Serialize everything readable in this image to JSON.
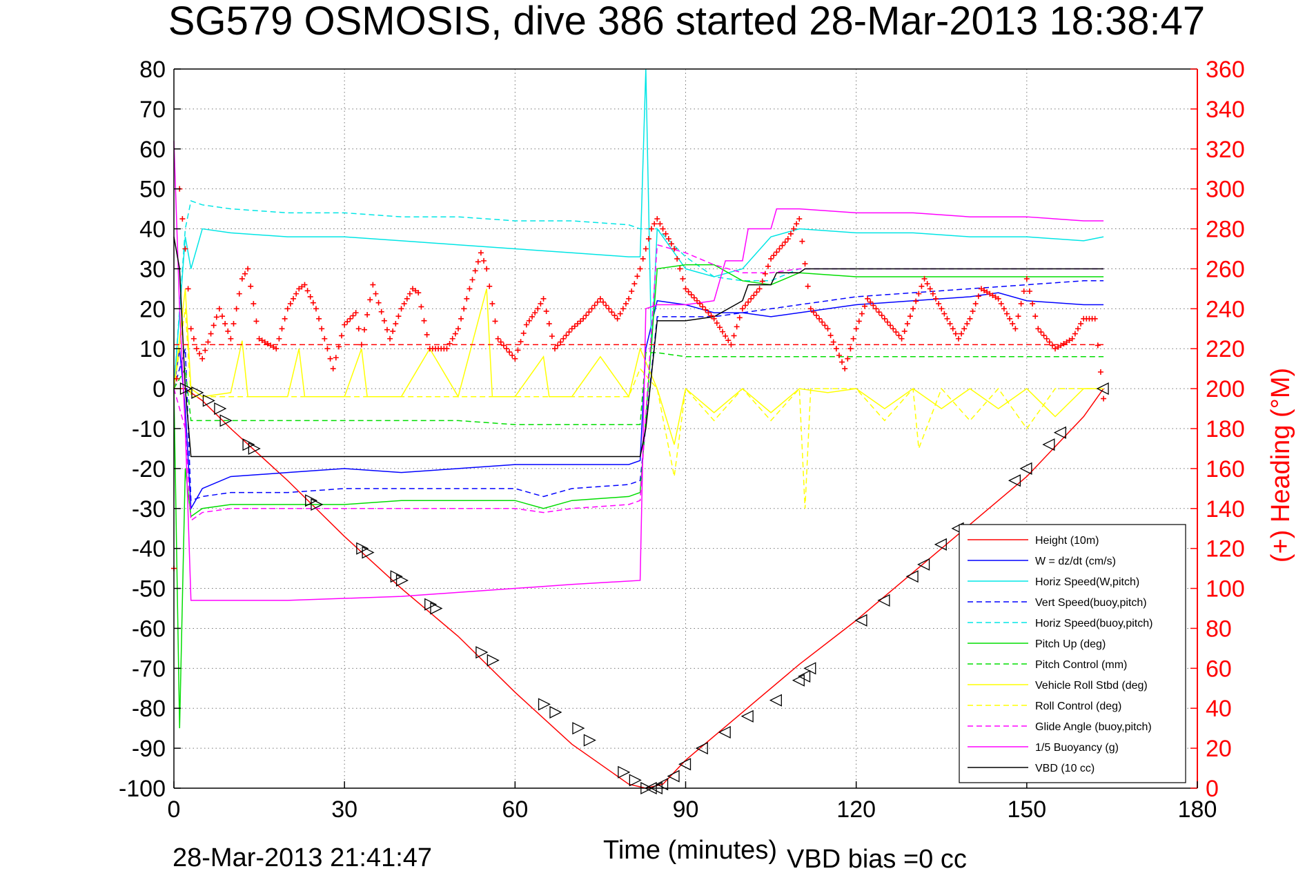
{
  "chart_data": {
    "type": "line",
    "title": "SG579 OSMOSIS, dive 386 started 28-Mar-2013 18:38:47",
    "xlabel": "Time (minutes)",
    "ylabel_right": "(+) Heading (°M)",
    "xlim": [
      0,
      180
    ],
    "ylim": [
      -100,
      80
    ],
    "ylim_right": [
      0,
      360
    ],
    "x_ticks": [
      "0",
      "30",
      "60",
      "90",
      "120",
      "150",
      "180"
    ],
    "y_ticks": [
      "80",
      "70",
      "60",
      "50",
      "40",
      "30",
      "20",
      "10",
      "0",
      "-10",
      "-20",
      "-30",
      "-40",
      "-50",
      "-60",
      "-70",
      "-80",
      "-90",
      "-100"
    ],
    "y_ticks_right": [
      "360",
      "340",
      "320",
      "300",
      "280",
      "260",
      "240",
      "220",
      "200",
      "180",
      "160",
      "140",
      "120",
      "100",
      "80",
      "60",
      "40",
      "20",
      "0"
    ],
    "grid": true,
    "legend_position": "bottom-right",
    "footer_left": "28-Mar-2013 21:41:47",
    "footer_right": "VBD bias =0 cc",
    "series": [
      {
        "name": "Height (10m)",
        "color": "#ff0000",
        "style": "solid",
        "x": [
          0,
          2,
          5,
          10,
          20,
          30,
          40,
          50,
          60,
          70,
          80,
          83,
          86,
          90,
          100,
          110,
          120,
          130,
          140,
          150,
          160,
          163.5
        ],
        "y": [
          0,
          0,
          -3,
          -10,
          -23,
          -37,
          -50,
          -62,
          -76,
          -89,
          -99,
          -100,
          -99,
          -93,
          -81,
          -69,
          -58,
          -46,
          -34,
          -22,
          -7,
          0
        ]
      },
      {
        "name": "W = dz/dt (cm/s)",
        "color": "#0000ff",
        "style": "solid",
        "x": [
          0,
          1,
          2,
          3,
          5,
          10,
          20,
          30,
          40,
          50,
          60,
          70,
          80,
          82,
          83,
          85,
          90,
          95,
          100,
          105,
          110,
          120,
          130,
          140,
          145,
          150,
          160,
          163.5
        ],
        "y": [
          0,
          10,
          -5,
          -30,
          -25,
          -22,
          -21,
          -20,
          -21,
          -20,
          -19,
          -19,
          -19,
          -18,
          10,
          22,
          21,
          19,
          19,
          18,
          19,
          21,
          22,
          23,
          24,
          22,
          21,
          21
        ]
      },
      {
        "name": "Horiz Speed(W,pitch)",
        "color": "#00e5e5",
        "style": "solid",
        "x": [
          0,
          2,
          3,
          5,
          10,
          20,
          30,
          40,
          50,
          60,
          70,
          80,
          82,
          83,
          84,
          85,
          90,
          95,
          100,
          105,
          110,
          120,
          130,
          140,
          150,
          160,
          163.5
        ],
        "y": [
          0,
          38,
          30,
          40,
          39,
          38,
          38,
          37,
          36,
          35,
          34,
          33,
          33,
          80,
          10,
          40,
          30,
          28,
          30,
          38,
          40,
          39,
          39,
          38,
          38,
          37,
          38
        ]
      },
      {
        "name": "Vert Speed(buoy,pitch)",
        "color": "#0000ff",
        "style": "dashed",
        "x": [
          0,
          2,
          3,
          5,
          10,
          20,
          30,
          40,
          50,
          60,
          65,
          70,
          80,
          82,
          85,
          90,
          95,
          100,
          105,
          110,
          120,
          130,
          140,
          150,
          160,
          163.5
        ],
        "y": [
          0,
          10,
          -28,
          -27,
          -26,
          -26,
          -25,
          -25,
          -25,
          -25,
          -27,
          -25,
          -24,
          -23,
          18,
          18,
          18,
          19,
          20,
          21,
          23,
          24,
          25,
          26,
          27,
          27
        ]
      },
      {
        "name": "Horiz Speed(buoy,pitch)",
        "color": "#00e5e5",
        "style": "dashed",
        "x": [
          0,
          2,
          3,
          5,
          10,
          20,
          30,
          40,
          50,
          60,
          70,
          80,
          82,
          85,
          90,
          95,
          100,
          105,
          110,
          120,
          130,
          140,
          150,
          160,
          163.5
        ],
        "y": [
          0,
          40,
          47,
          46,
          45,
          44,
          44,
          43,
          43,
          42,
          42,
          41,
          40,
          40,
          33,
          28,
          27,
          27,
          30,
          30,
          30,
          30,
          30,
          30,
          30
        ]
      },
      {
        "name": "Pitch Up (deg)",
        "color": "#00dd00",
        "style": "solid",
        "x": [
          0,
          1,
          2,
          3,
          5,
          10,
          20,
          30,
          40,
          50,
          60,
          65,
          70,
          80,
          82,
          85,
          90,
          95,
          100,
          105,
          110,
          120,
          130,
          140,
          150,
          160,
          163.5
        ],
        "y": [
          0,
          -85,
          -20,
          -32,
          -30,
          -29,
          -29,
          -29,
          -28,
          -28,
          -28,
          -30,
          -28,
          -27,
          -26,
          30,
          31,
          31,
          27,
          26,
          29,
          28,
          28,
          28,
          28,
          28,
          28
        ]
      },
      {
        "name": "Pitch Control (mm)",
        "color": "#00dd00",
        "style": "dashed",
        "x": [
          0,
          2,
          3,
          5,
          10,
          20,
          30,
          40,
          50,
          60,
          70,
          80,
          82,
          83,
          85,
          90,
          100,
          110,
          120,
          130,
          140,
          150,
          160,
          163.5
        ],
        "y": [
          0,
          5,
          -8,
          -8,
          -8,
          -8,
          -8,
          -8,
          -8,
          -9,
          -9,
          -9,
          -9,
          9,
          9,
          8,
          8,
          8,
          8,
          8,
          8,
          8,
          8,
          8
        ]
      },
      {
        "name": "Vehicle Roll Stbd (deg)",
        "color": "#ffff00",
        "style": "solid",
        "x": [
          0,
          2,
          3,
          5,
          10,
          12,
          13,
          20,
          22,
          23,
          30,
          33,
          34,
          40,
          45,
          50,
          55,
          56,
          60,
          65,
          66,
          70,
          75,
          80,
          82,
          85,
          88,
          90,
          95,
          100,
          105,
          110,
          115,
          120,
          125,
          130,
          135,
          140,
          145,
          150,
          155,
          160,
          163.5
        ],
        "y": [
          0,
          25,
          0,
          -2,
          -1,
          12,
          -2,
          -2,
          10,
          -2,
          -2,
          10,
          -2,
          -2,
          10,
          -2,
          25,
          -2,
          -2,
          8,
          -2,
          -2,
          8,
          -2,
          10,
          0,
          -14,
          0,
          -6,
          0,
          -6,
          0,
          -1,
          0,
          -5,
          0,
          -5,
          0,
          -5,
          0,
          -7,
          0,
          0
        ]
      },
      {
        "name": "Roll Control (deg)",
        "color": "#ffff00",
        "style": "dashed",
        "x": [
          0,
          2,
          3,
          10,
          20,
          30,
          40,
          50,
          60,
          70,
          80,
          82,
          85,
          88,
          90,
          95,
          100,
          105,
          110,
          111,
          112,
          120,
          125,
          130,
          131,
          135,
          140,
          145,
          150,
          155,
          160,
          163.5
        ],
        "y": [
          0,
          20,
          -2,
          -2,
          -2,
          -2,
          -2,
          -2,
          -2,
          -2,
          -2,
          5,
          0,
          -22,
          0,
          -8,
          0,
          -8,
          0,
          -30,
          0,
          0,
          -8,
          0,
          -15,
          0,
          -8,
          0,
          -10,
          0,
          0,
          0
        ]
      },
      {
        "name": "Glide Angle (buoy,pitch)",
        "color": "#ff00ff",
        "style": "dashed",
        "x": [
          0,
          2,
          3,
          5,
          10,
          20,
          30,
          40,
          50,
          60,
          65,
          70,
          80,
          82,
          85,
          90,
          95,
          100,
          105,
          110,
          120,
          130,
          140,
          150,
          160,
          163.5
        ],
        "y": [
          0,
          -10,
          -33,
          -31,
          -30,
          -30,
          -30,
          -30,
          -30,
          -30,
          -31,
          -30,
          -29,
          -28,
          36,
          34,
          31,
          29,
          29,
          30,
          30,
          30,
          30,
          30,
          30,
          30
        ]
      },
      {
        "name": "1/5 Buoyancy (g)",
        "color": "#ff00ff",
        "style": "solid",
        "x": [
          0,
          1,
          2,
          3,
          20,
          40,
          60,
          70,
          82,
          83,
          85,
          90,
          95,
          97,
          100,
          101,
          105,
          106,
          110,
          120,
          130,
          140,
          150,
          160,
          163.5
        ],
        "y": [
          62,
          20,
          -10,
          -53,
          -53,
          -52,
          -50,
          -49,
          -48,
          20,
          21,
          21,
          22,
          32,
          32,
          40,
          40,
          45,
          45,
          44,
          44,
          43,
          43,
          42,
          42
        ]
      },
      {
        "name": "VBD (10 cc)",
        "color": "#000000",
        "style": "solid",
        "x": [
          0,
          1,
          2,
          3,
          82,
          83,
          85,
          90,
          95,
          100,
          101,
          105,
          106,
          110,
          111,
          163.5
        ],
        "y": [
          38,
          30,
          0,
          -17,
          -17,
          -10,
          17,
          17,
          18,
          22,
          26,
          26,
          29,
          29,
          30,
          30
        ]
      },
      {
        "name": "Heading",
        "axis": "right",
        "color": "#ff0000",
        "marker": "+",
        "x": [
          0,
          1,
          2,
          3,
          4,
          5,
          8,
          10,
          12,
          13,
          15,
          18,
          20,
          22,
          23,
          25,
          28,
          30,
          32,
          33,
          35,
          38,
          40,
          42,
          43,
          45,
          48,
          50,
          52,
          54,
          55,
          57,
          60,
          62,
          64,
          65,
          67,
          70,
          72,
          75,
          78,
          80,
          82,
          84,
          85,
          86,
          88,
          90,
          95,
          98,
          100,
          103,
          105,
          108,
          110,
          112,
          115,
          118,
          120,
          122,
          125,
          128,
          130,
          132,
          135,
          138,
          140,
          142,
          145,
          148,
          150,
          152,
          155,
          158,
          160,
          162,
          163.5
        ],
        "y": [
          110,
          300,
          270,
          230,
          220,
          215,
          240,
          225,
          255,
          260,
          225,
          220,
          240,
          250,
          252,
          240,
          210,
          232,
          238,
          222,
          252,
          225,
          240,
          250,
          248,
          220,
          220,
          230,
          250,
          268,
          260,
          225,
          215,
          232,
          240,
          245,
          220,
          230,
          235,
          245,
          235,
          245,
          260,
          280,
          285,
          280,
          270,
          250,
          235,
          222,
          240,
          250,
          265,
          275,
          285,
          240,
          230,
          210,
          230,
          245,
          235,
          225,
          240,
          255,
          240,
          225,
          235,
          250,
          245,
          230,
          255,
          230,
          220,
          225,
          235,
          235,
          195
        ]
      },
      {
        "name": "Target heading",
        "axis": "right",
        "color": "#ff0000",
        "style": "dashed",
        "x": [
          0,
          163.5
        ],
        "y": [
          222,
          222
        ]
      },
      {
        "name": "Waypoints",
        "color": "#000000",
        "marker": "triangle",
        "x": [
          2,
          4,
          6,
          8,
          9,
          13,
          14,
          24,
          25,
          33,
          34,
          39,
          40,
          45,
          46,
          54,
          56,
          65,
          67,
          71,
          73,
          79,
          81,
          83,
          84,
          85,
          86,
          88,
          90,
          93,
          97,
          101,
          106,
          110,
          111,
          112,
          121,
          125,
          130,
          132,
          135,
          138,
          148,
          150,
          154,
          156,
          163.5
        ],
        "y": [
          0,
          -1,
          -3,
          -5,
          -8,
          -14,
          -15,
          -28,
          -29,
          -40,
          -41,
          -47,
          -48,
          -54,
          -55,
          -66,
          -68,
          -79,
          -81,
          -85,
          -88,
          -96,
          -98,
          -100,
          -100,
          -100,
          -99,
          -97,
          -94,
          -90,
          -86,
          -82,
          -78,
          -73,
          -72,
          -70,
          -58,
          -53,
          -47,
          -44,
          -39,
          -35,
          -23,
          -20,
          -14,
          -11,
          0
        ]
      }
    ]
  }
}
